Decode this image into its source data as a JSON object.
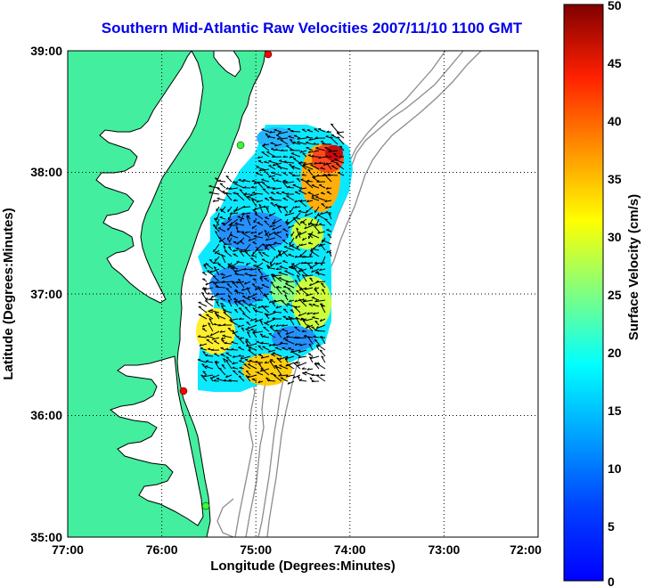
{
  "title": "Southern Mid-Atlantic Raw Velocities 2007/11/10 1100 GMT",
  "xaxis": {
    "label": "Longitude (Degrees:Minutes)",
    "ticks": [
      "77:00",
      "76:00",
      "75:00",
      "74:00",
      "73:00",
      "72:00"
    ]
  },
  "yaxis": {
    "label": "Latitude (Degrees:Minutes)",
    "ticks": [
      "39:00",
      "38:00",
      "37:00",
      "36:00",
      "35:00"
    ]
  },
  "colorbar": {
    "label": "Surface Velocity (cm/s)",
    "ticks": [
      "50",
      "45",
      "40",
      "35",
      "30",
      "25",
      "20",
      "15",
      "10",
      "5",
      "0"
    ],
    "range": [
      0,
      50
    ],
    "colormap": "jet"
  },
  "colors": {
    "land": "#43ee9e",
    "coastline": "#000000",
    "bathymetry": "#8c8c8c",
    "ocean": "#ffffff",
    "station_red": "#ff0000",
    "station_green": "#33ff33"
  },
  "stations": [
    {
      "color": "red",
      "lon": -74.85,
      "lat": 38.94
    },
    {
      "color": "green",
      "lon": -75.1,
      "lat": 38.25
    },
    {
      "color": "red",
      "lon": -75.72,
      "lat": 36.19
    },
    {
      "color": "green",
      "lon": -75.47,
      "lat": 35.25
    }
  ]
}
